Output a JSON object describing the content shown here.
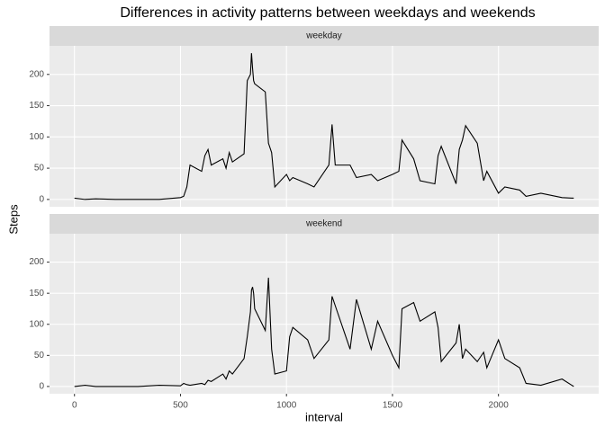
{
  "chart_data": {
    "type": "line",
    "title": "Differences in activity patterns between weekdays and weekends",
    "x_label": "interval",
    "y_label": "Steps",
    "x": [
      0,
      50,
      100,
      200,
      300,
      400,
      500,
      515,
      530,
      545,
      600,
      615,
      630,
      645,
      700,
      715,
      730,
      745,
      800,
      815,
      830,
      835,
      840,
      845,
      850,
      900,
      915,
      930,
      945,
      1000,
      1015,
      1030,
      1100,
      1130,
      1200,
      1215,
      1230,
      1300,
      1330,
      1400,
      1430,
      1500,
      1530,
      1545,
      1600,
      1630,
      1700,
      1715,
      1730,
      1800,
      1815,
      1830,
      1845,
      1900,
      1930,
      1945,
      2000,
      2030,
      2100,
      2130,
      2200,
      2300,
      2355
    ],
    "series": [
      {
        "name": "weekday",
        "color": "#000000",
        "values": [
          2,
          0,
          1,
          0,
          0,
          0,
          3,
          5,
          20,
          55,
          45,
          70,
          80,
          55,
          65,
          50,
          75,
          60,
          73,
          190,
          200,
          234,
          210,
          190,
          185,
          172,
          90,
          75,
          20,
          40,
          30,
          35,
          25,
          20,
          55,
          120,
          55,
          55,
          35,
          40,
          30,
          40,
          45,
          95,
          65,
          30,
          25,
          70,
          85,
          25,
          80,
          95,
          118,
          90,
          30,
          45,
          10,
          20,
          15,
          5,
          10,
          3,
          2
        ]
      },
      {
        "name": "weekend",
        "color": "#000000",
        "values": [
          0,
          2,
          0,
          0,
          0,
          2,
          1,
          5,
          3,
          2,
          5,
          3,
          10,
          8,
          20,
          12,
          25,
          20,
          45,
          80,
          120,
          155,
          160,
          150,
          125,
          90,
          175,
          60,
          20,
          25,
          80,
          95,
          75,
          45,
          75,
          145,
          130,
          60,
          140,
          60,
          105,
          50,
          30,
          125,
          135,
          105,
          120,
          95,
          40,
          70,
          100,
          45,
          60,
          40,
          55,
          30,
          75,
          45,
          30,
          5,
          2,
          12,
          0
        ]
      }
    ],
    "xlim": [
      -117.75,
      2472.75
    ],
    "xticks": [
      0,
      500,
      1000,
      1500,
      2000
    ],
    "ylim": [
      -11.7,
      245.7
    ],
    "yticks": [
      0,
      50,
      100,
      150,
      200
    ],
    "grid": true
  }
}
